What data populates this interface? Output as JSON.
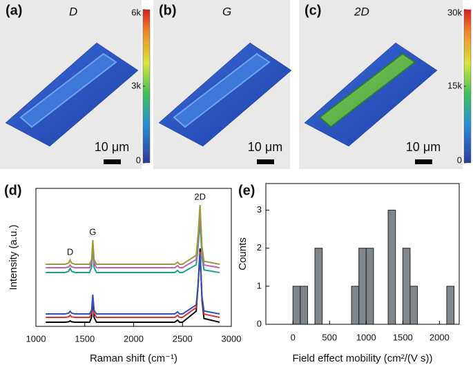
{
  "chart_data": [
    {
      "type": "map",
      "panel": "(a)",
      "title": "D",
      "colorbar_lim": [
        0,
        6000
      ],
      "colorbar_ticks": [
        0,
        {
          "value": 3000,
          "label": "3k"
        },
        {
          "value": 6000,
          "label": "6k"
        }
      ],
      "scale_bar": "10 μm"
    },
    {
      "type": "map",
      "panel": "(b)",
      "title": "G",
      "scale_bar": "10 μm"
    },
    {
      "type": "map",
      "panel": "(c)",
      "title": "2D",
      "colorbar_lim": [
        0,
        30000
      ],
      "colorbar_ticks": [
        0,
        {
          "value": 15000,
          "label": "15k"
        },
        {
          "value": 30000,
          "label": "30k"
        }
      ],
      "scale_bar": "10 μm"
    },
    {
      "type": "line",
      "panel": "(d)",
      "x_label": "Raman shift (cm⁻¹)",
      "y_label": "Intensity (a.u.)",
      "x": [
        1100,
        1300,
        1335,
        1350,
        1365,
        1400,
        1550,
        1570,
        1582,
        1595,
        1620,
        2000,
        2420,
        2450,
        2470,
        2500,
        2640,
        2660,
        2680,
        2700,
        2720,
        2880
      ],
      "series": [
        {
          "color": "#9a9a3a",
          "values": [
            45,
            45,
            45.9,
            48,
            45.9,
            45,
            45,
            48.5,
            62.5,
            48.5,
            45,
            45,
            45,
            46.5,
            45,
            45,
            51.5,
            66.5,
            88,
            57.9,
            47.2,
            45
          ]
        },
        {
          "color": "#c060c0",
          "values": [
            42.5,
            42.5,
            43.1,
            44.5,
            43.1,
            42.5,
            42.5,
            46.1,
            60.5,
            46.1,
            42.5,
            42.5,
            42.5,
            44,
            42.5,
            42.5,
            48.4,
            62,
            81.5,
            54.2,
            44.5,
            42.5
          ]
        },
        {
          "color": "#1fa08e",
          "values": [
            39,
            39,
            39.9,
            42,
            39.9,
            39,
            39,
            42.9,
            58.5,
            42.9,
            39,
            39,
            39,
            40.5,
            39,
            39,
            44.6,
            57.8,
            76.5,
            50.3,
            40.9,
            39
          ]
        },
        {
          "color": "#3050c0",
          "values": [
            9,
            9,
            9.6,
            11,
            9.6,
            9,
            9,
            11.8,
            23,
            11.8,
            9,
            9,
            9,
            10.5,
            9,
            9,
            15.5,
            30.5,
            52,
            21.9,
            11.2,
            9
          ]
        },
        {
          "color": "#e03030",
          "values": [
            6.5,
            6.5,
            6.9,
            8,
            6.9,
            6.5,
            6.5,
            9.6,
            22,
            9.6,
            6.5,
            6.5,
            6.5,
            8,
            6.5,
            6.5,
            13.6,
            30.3,
            54,
            20.8,
            8.9,
            6.5
          ]
        },
        {
          "color": "#000000",
          "values": [
            3,
            3,
            3.3,
            4,
            3.3,
            3,
            3,
            6.6,
            21,
            6.6,
            3,
            3,
            3,
            4.5,
            3,
            3,
            11,
            29.8,
            56.5,
            19,
            5.7,
            3
          ]
        }
      ],
      "xlim": [
        1000,
        3000
      ],
      "xticks": [
        1000,
        1500,
        2000,
        2500,
        3000
      ],
      "ylim": [
        0,
        100
      ],
      "annotations": [
        {
          "text": "D",
          "x": 1350
        },
        {
          "text": "G",
          "x": 1582
        },
        {
          "text": "2D",
          "x": 2680
        }
      ]
    },
    {
      "type": "histogram",
      "panel": "(e)",
      "x_label": "Field effect mobility (cm²/(V s))",
      "y_label": "Counts",
      "bins": [
        0,
        100,
        200,
        300,
        400,
        500,
        600,
        700,
        800,
        900,
        1000,
        1100,
        1200,
        1300,
        1400,
        1500,
        1600,
        1700,
        1800,
        1900,
        2000,
        2100,
        2200
      ],
      "counts": [
        1,
        1,
        0,
        2,
        0,
        0,
        0,
        0,
        1,
        2,
        2,
        0,
        0,
        3,
        0,
        2,
        1,
        0,
        0,
        0,
        0,
        1
      ],
      "color": "#7f868c",
      "xlim": [
        -370,
        2270
      ],
      "xticks": [
        0,
        500,
        1000,
        1500,
        2000
      ],
      "ylim": [
        0,
        3.7
      ],
      "yticks": [
        0,
        1,
        2,
        3
      ]
    }
  ]
}
